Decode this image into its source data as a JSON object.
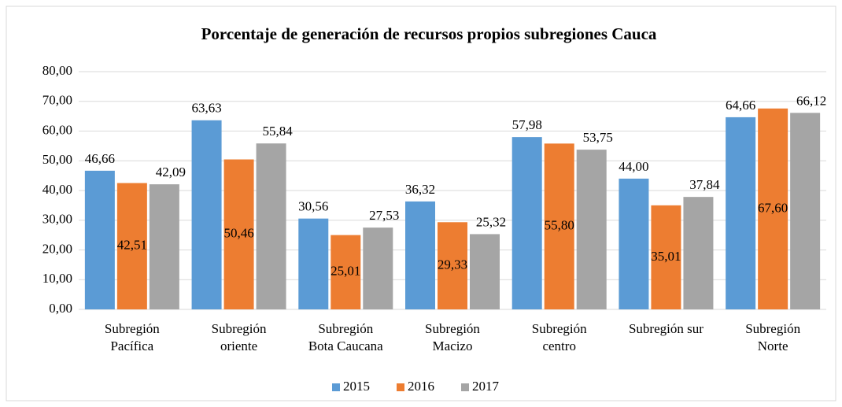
{
  "chart_data": {
    "type": "bar",
    "title": "Porcentaje  de generación de recursos propios subregiones Cauca",
    "categories": [
      "Subregión\nPacífica",
      "Subregión\noriente",
      "Subregión\nBota Caucana",
      "Subregión\nMacizo",
      "Subregión\ncentro",
      "Subregión sur",
      "Subregión\nNorte"
    ],
    "series": [
      {
        "name": "2015",
        "color": "#5b9bd5",
        "values": [
          46.66,
          63.63,
          30.56,
          36.32,
          57.98,
          44.0,
          64.66
        ],
        "value_labels": [
          "46,66",
          "63,63",
          "30,56",
          "36,32",
          "57,98",
          "44,00",
          "64,66"
        ]
      },
      {
        "name": "2016",
        "color": "#ed7d31",
        "values": [
          42.51,
          50.46,
          25.01,
          29.33,
          55.8,
          35.01,
          67.6
        ],
        "value_labels": [
          "42,51",
          "50,46",
          "25,01",
          "29,33",
          "55,80",
          "35,01",
          "67,60"
        ]
      },
      {
        "name": "2017",
        "color": "#a5a5a5",
        "values": [
          42.09,
          55.84,
          27.53,
          25.32,
          53.75,
          37.84,
          66.12
        ],
        "value_labels": [
          "42,09",
          "55,84",
          "27,53",
          "25,32",
          "53,75",
          "37,84",
          "66,12"
        ]
      }
    ],
    "ylim": [
      0,
      80
    ],
    "yticks": [
      {
        "value": 0,
        "label": "0,00"
      },
      {
        "value": 10,
        "label": "10,00"
      },
      {
        "value": 20,
        "label": "20,00"
      },
      {
        "value": 30,
        "label": "30,00"
      },
      {
        "value": 40,
        "label": "40,00"
      },
      {
        "value": 50,
        "label": "50,00"
      },
      {
        "value": 60,
        "label": "60,00"
      },
      {
        "value": 70,
        "label": "70,00"
      },
      {
        "value": 80,
        "label": "80,00"
      }
    ],
    "grid": true,
    "legend": "bottom"
  }
}
